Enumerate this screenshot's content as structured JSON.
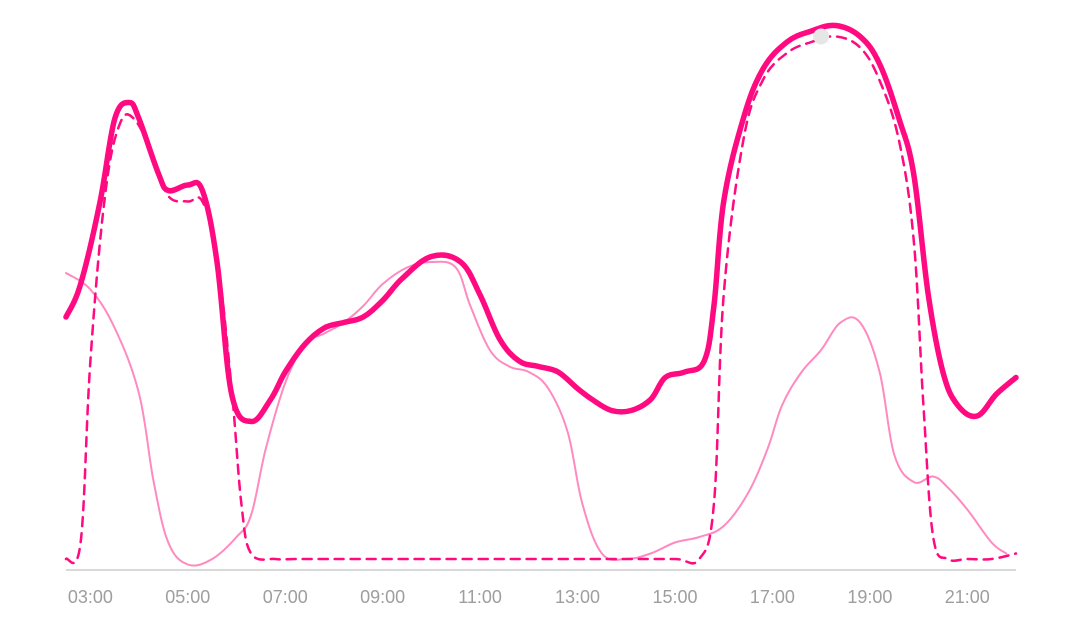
{
  "chart_data": {
    "type": "line",
    "title": "",
    "xlabel": "",
    "ylabel": "",
    "x_ticks": [
      "03:00",
      "05:00",
      "07:00",
      "09:00",
      "11:00",
      "13:00",
      "15:00",
      "17:00",
      "19:00",
      "21:00"
    ],
    "x_range_hours": [
      2.5,
      22.0
    ],
    "ylim": [
      0,
      100
    ],
    "grid": false,
    "legend": "none",
    "colors": {
      "axis": "#d9d9d9",
      "tick_text": "#9e9e9e",
      "total": "#ff0a80",
      "dashed": "#ff0a80",
      "light": "#ff8ac0",
      "marker": "#e6e6e6"
    },
    "series": [
      {
        "style": "solid-thick",
        "points": [
          [
            2.5,
            46
          ],
          [
            2.8,
            52
          ],
          [
            3.2,
            67
          ],
          [
            3.5,
            82
          ],
          [
            3.8,
            85
          ],
          [
            4.0,
            82
          ],
          [
            4.4,
            72
          ],
          [
            4.6,
            69
          ],
          [
            5.0,
            70
          ],
          [
            5.3,
            69
          ],
          [
            5.6,
            56
          ],
          [
            5.9,
            32
          ],
          [
            6.3,
            27
          ],
          [
            6.7,
            31
          ],
          [
            7.0,
            36
          ],
          [
            7.4,
            41
          ],
          [
            7.8,
            44
          ],
          [
            8.2,
            45
          ],
          [
            8.6,
            46
          ],
          [
            9.0,
            49
          ],
          [
            9.4,
            53
          ],
          [
            10.0,
            57
          ],
          [
            10.6,
            56
          ],
          [
            11.0,
            50
          ],
          [
            11.4,
            42
          ],
          [
            11.8,
            38
          ],
          [
            12.2,
            37
          ],
          [
            12.6,
            36
          ],
          [
            13.0,
            33
          ],
          [
            13.3,
            31
          ],
          [
            13.7,
            29
          ],
          [
            14.1,
            29
          ],
          [
            14.5,
            31
          ],
          [
            14.8,
            35
          ],
          [
            15.2,
            36
          ],
          [
            15.6,
            38
          ],
          [
            15.8,
            48
          ],
          [
            16.0,
            67
          ],
          [
            16.4,
            82
          ],
          [
            16.8,
            91
          ],
          [
            17.3,
            96
          ],
          [
            17.8,
            98
          ],
          [
            18.3,
            99
          ],
          [
            18.8,
            97
          ],
          [
            19.2,
            92
          ],
          [
            19.6,
            82
          ],
          [
            19.9,
            72
          ],
          [
            20.2,
            50
          ],
          [
            20.5,
            36
          ],
          [
            20.8,
            30
          ],
          [
            21.2,
            28
          ],
          [
            21.6,
            32
          ],
          [
            22.0,
            35
          ]
        ]
      },
      {
        "style": "dashed",
        "points": [
          [
            2.5,
            2
          ],
          [
            2.8,
            5
          ],
          [
            3.0,
            38
          ],
          [
            3.3,
            68
          ],
          [
            3.6,
            81
          ],
          [
            3.9,
            82
          ],
          [
            4.3,
            75
          ],
          [
            4.6,
            68
          ],
          [
            5.0,
            67
          ],
          [
            5.3,
            67
          ],
          [
            5.6,
            57
          ],
          [
            5.9,
            33
          ],
          [
            6.1,
            12
          ],
          [
            6.3,
            3
          ],
          [
            6.8,
            2
          ],
          [
            7.2,
            2
          ],
          [
            7.8,
            2
          ],
          [
            8.5,
            2
          ],
          [
            9.5,
            2
          ],
          [
            11.0,
            2
          ],
          [
            12.5,
            2
          ],
          [
            14.0,
            2
          ],
          [
            15.0,
            2
          ],
          [
            15.5,
            2
          ],
          [
            15.8,
            12
          ],
          [
            16.0,
            50
          ],
          [
            16.4,
            78
          ],
          [
            16.8,
            89
          ],
          [
            17.3,
            94
          ],
          [
            17.8,
            96
          ],
          [
            18.3,
            97
          ],
          [
            18.8,
            95
          ],
          [
            19.2,
            89
          ],
          [
            19.6,
            78
          ],
          [
            19.9,
            60
          ],
          [
            20.1,
            30
          ],
          [
            20.3,
            6
          ],
          [
            20.6,
            2
          ],
          [
            21.0,
            2
          ],
          [
            21.5,
            2
          ],
          [
            22.0,
            3
          ]
        ]
      },
      {
        "style": "solid-thin",
        "points": [
          [
            2.5,
            54
          ],
          [
            3.0,
            51
          ],
          [
            3.5,
            44
          ],
          [
            4.0,
            32
          ],
          [
            4.3,
            16
          ],
          [
            4.6,
            5
          ],
          [
            5.0,
            1
          ],
          [
            5.5,
            2
          ],
          [
            6.0,
            6
          ],
          [
            6.3,
            10
          ],
          [
            6.6,
            22
          ],
          [
            7.0,
            34
          ],
          [
            7.4,
            41
          ],
          [
            7.8,
            43
          ],
          [
            8.2,
            45
          ],
          [
            8.6,
            48
          ],
          [
            9.0,
            52
          ],
          [
            9.5,
            55
          ],
          [
            10.0,
            56
          ],
          [
            10.5,
            55
          ],
          [
            10.8,
            48
          ],
          [
            11.2,
            40
          ],
          [
            11.6,
            37
          ],
          [
            12.0,
            36
          ],
          [
            12.4,
            33
          ],
          [
            12.8,
            25
          ],
          [
            13.1,
            12
          ],
          [
            13.5,
            3
          ],
          [
            14.0,
            2
          ],
          [
            14.5,
            3
          ],
          [
            15.0,
            5
          ],
          [
            15.5,
            6
          ],
          [
            16.0,
            8
          ],
          [
            16.5,
            14
          ],
          [
            16.9,
            22
          ],
          [
            17.2,
            30
          ],
          [
            17.6,
            36
          ],
          [
            18.0,
            40
          ],
          [
            18.4,
            45
          ],
          [
            18.8,
            45
          ],
          [
            19.2,
            36
          ],
          [
            19.5,
            21
          ],
          [
            19.9,
            16
          ],
          [
            20.3,
            17
          ],
          [
            20.6,
            15
          ],
          [
            21.0,
            11
          ],
          [
            21.5,
            5
          ],
          [
            21.8,
            3
          ]
        ]
      }
    ],
    "marker": {
      "x": 18.0,
      "y": 97
    }
  }
}
